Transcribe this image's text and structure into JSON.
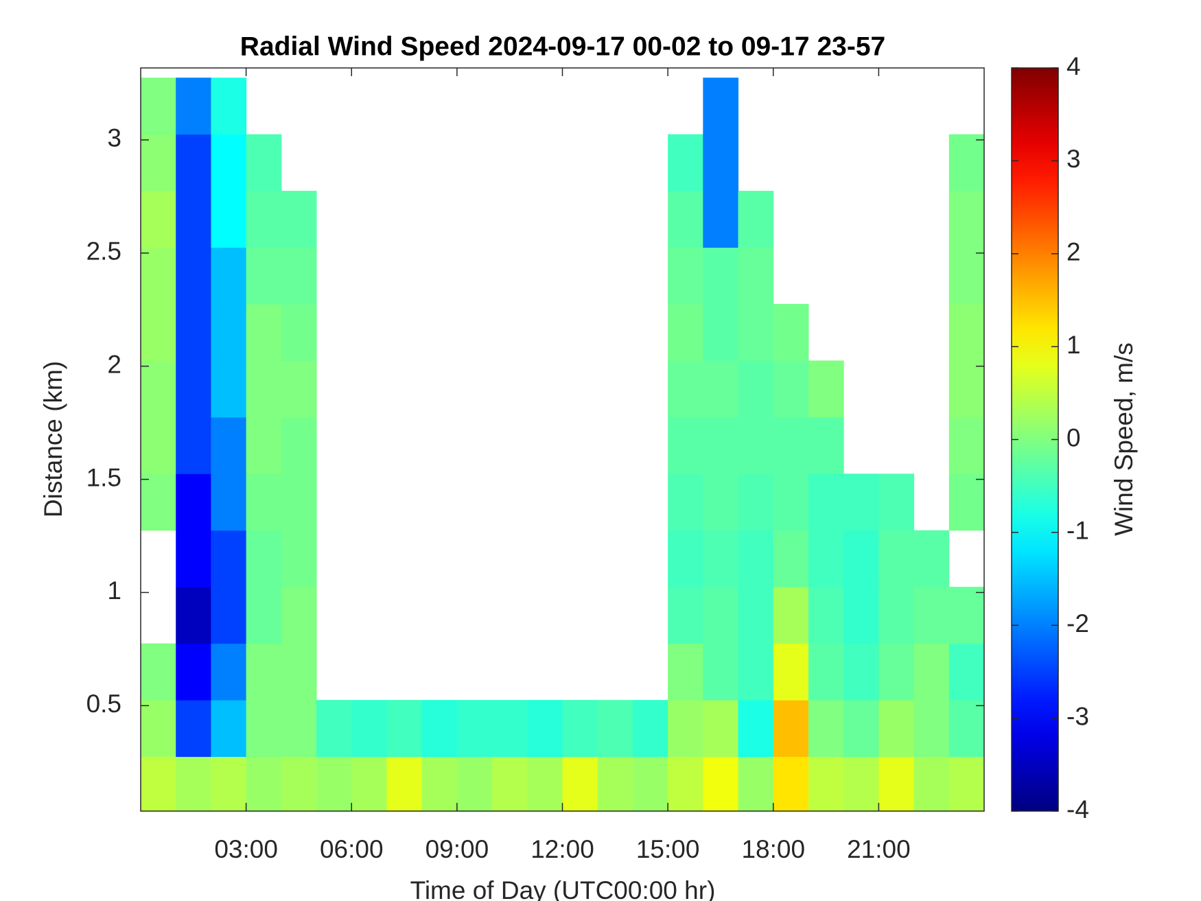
{
  "chart_data": {
    "type": "heatmap",
    "title": "Radial Wind Speed 2024-09-17 00-02 to 09-17 23-57",
    "xlabel": "Time of Day (UTC00:00 hr)",
    "ylabel": "Distance (km)",
    "x": [
      0.5,
      1.5,
      2.5,
      3.5,
      4.5,
      5.5,
      6.5,
      7.5,
      8.5,
      9.5,
      10.5,
      11.5,
      12.5,
      13.5,
      14.5,
      15.5,
      16.5,
      17.5,
      18.5,
      19.5,
      20.5,
      21.5,
      22.5,
      23.5
    ],
    "y": [
      0.15,
      0.4,
      0.65,
      0.9,
      1.15,
      1.4,
      1.65,
      1.9,
      2.15,
      2.4,
      2.65,
      2.9,
      3.15
    ],
    "z": [
      [
        0.5,
        0.3,
        0.4,
        0.2,
        0.3,
        0.2,
        0.3,
        0.8,
        0.3,
        0.2,
        0.4,
        0.3,
        0.8,
        0.3,
        0.2,
        0.5,
        0.9,
        0.2,
        1.2,
        0.5,
        0.4,
        0.8,
        0.3,
        0.4
      ],
      [
        0.2,
        -2.5,
        -1.5,
        0,
        0,
        -0.5,
        -0.6,
        -0.5,
        -0.7,
        -0.6,
        -0.6,
        -0.7,
        -0.5,
        -0.4,
        -0.6,
        0.2,
        0.3,
        -0.8,
        1.5,
        0,
        -0.2,
        0.2,
        0,
        -0.3
      ],
      [
        0,
        -3,
        -2,
        0,
        0,
        null,
        null,
        null,
        null,
        null,
        null,
        null,
        null,
        null,
        null,
        0,
        -0.3,
        -0.5,
        0.8,
        -0.3,
        -0.5,
        -0.2,
        0,
        -0.5
      ],
      [
        null,
        -3.5,
        -2.5,
        -0.2,
        0,
        null,
        null,
        null,
        null,
        null,
        null,
        null,
        null,
        null,
        null,
        -0.4,
        -0.3,
        -0.5,
        0.3,
        -0.4,
        -0.6,
        -0.3,
        -0.2,
        -0.2
      ],
      [
        null,
        -3,
        -2.5,
        -0.2,
        -0.1,
        null,
        null,
        null,
        null,
        null,
        null,
        null,
        null,
        null,
        null,
        -0.5,
        -0.4,
        -0.5,
        -0.2,
        -0.5,
        -0.6,
        -0.3,
        -0.3,
        null
      ],
      [
        0,
        -3,
        -2,
        -0.1,
        -0.1,
        null,
        null,
        null,
        null,
        null,
        null,
        null,
        null,
        null,
        null,
        -0.4,
        -0.3,
        -0.4,
        -0.3,
        -0.5,
        -0.5,
        -0.4,
        null,
        -0.1
      ],
      [
        0.1,
        -2.5,
        -2,
        0,
        -0.1,
        null,
        null,
        null,
        null,
        null,
        null,
        null,
        null,
        null,
        null,
        -0.3,
        -0.3,
        -0.3,
        -0.3,
        -0.3,
        null,
        null,
        null,
        0
      ],
      [
        0.1,
        -2.5,
        -1.5,
        0,
        0,
        null,
        null,
        null,
        null,
        null,
        null,
        null,
        null,
        null,
        null,
        -0.2,
        -0.2,
        -0.3,
        -0.2,
        0,
        null,
        null,
        null,
        0.1
      ],
      [
        0.2,
        -2.5,
        -1.5,
        0,
        -0.1,
        null,
        null,
        null,
        null,
        null,
        null,
        null,
        null,
        null,
        null,
        -0.1,
        -0.3,
        -0.2,
        -0.1,
        null,
        null,
        null,
        null,
        0.1
      ],
      [
        0.2,
        -2.5,
        -1.5,
        -0.2,
        -0.2,
        null,
        null,
        null,
        null,
        null,
        null,
        null,
        null,
        null,
        null,
        -0.2,
        -0.3,
        -0.2,
        null,
        null,
        null,
        null,
        null,
        0
      ],
      [
        0.3,
        -2.5,
        -1,
        -0.3,
        -0.3,
        null,
        null,
        null,
        null,
        null,
        null,
        null,
        null,
        null,
        null,
        -0.3,
        -2,
        -0.3,
        null,
        null,
        null,
        null,
        null,
        0
      ],
      [
        0.1,
        -2.5,
        -1,
        -0.4,
        null,
        null,
        null,
        null,
        null,
        null,
        null,
        null,
        null,
        null,
        null,
        -0.5,
        -2,
        null,
        null,
        null,
        null,
        null,
        null,
        -0.1
      ],
      [
        0,
        -2,
        -0.8,
        null,
        null,
        null,
        null,
        null,
        null,
        null,
        null,
        null,
        null,
        null,
        null,
        null,
        -2,
        null,
        null,
        null,
        null,
        null,
        null,
        null
      ]
    ],
    "xlim": [
      0,
      24
    ],
    "xticks": [
      {
        "value": 3,
        "label": "03:00"
      },
      {
        "value": 6,
        "label": "06:00"
      },
      {
        "value": 9,
        "label": "09:00"
      },
      {
        "value": 12,
        "label": "12:00"
      },
      {
        "value": 15,
        "label": "15:00"
      },
      {
        "value": 18,
        "label": "18:00"
      },
      {
        "value": 21,
        "label": "21:00"
      }
    ],
    "ylim": [
      0.034,
      3.318
    ],
    "yticks": [
      0.5,
      1,
      1.5,
      2,
      2.5,
      3
    ],
    "colormap": "jet",
    "colorbar": {
      "label": "Wind Speed, m/s",
      "lim": [
        -4,
        4
      ],
      "ticks": [
        -4,
        -3,
        -2,
        -1,
        0,
        1,
        2,
        3,
        4
      ]
    }
  }
}
